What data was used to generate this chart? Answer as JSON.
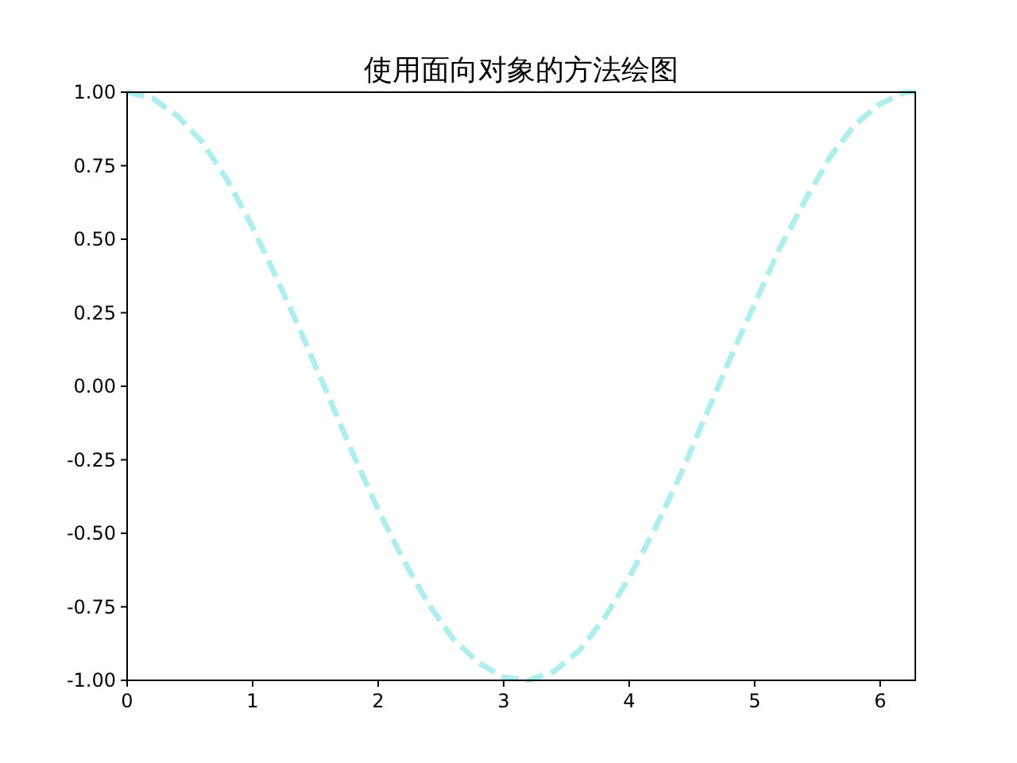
{
  "chart_data": {
    "type": "line",
    "title": "使用面向对象的方法绘图",
    "x": [
      0,
      0.2,
      0.4,
      0.6,
      0.8,
      1.0,
      1.2,
      1.4,
      1.6,
      1.8,
      2.0,
      2.2,
      2.4,
      2.6,
      2.8,
      3.0,
      3.2,
      3.4,
      3.6,
      3.8,
      4.0,
      4.2,
      4.4,
      4.6,
      4.8,
      5.0,
      5.2,
      5.4,
      5.6,
      5.8,
      6.0,
      6.2,
      6.28
    ],
    "values": [
      1.0,
      0.98,
      0.92,
      0.83,
      0.7,
      0.54,
      0.36,
      0.17,
      -0.03,
      -0.23,
      -0.42,
      -0.59,
      -0.74,
      -0.86,
      -0.94,
      -0.99,
      -1.0,
      -0.97,
      -0.9,
      -0.79,
      -0.65,
      -0.49,
      -0.31,
      -0.11,
      0.09,
      0.28,
      0.47,
      0.63,
      0.78,
      0.89,
      0.96,
      1.0,
      1.0
    ],
    "color": "#afeeee",
    "line_style": "dashed",
    "xlim": [
      0,
      6.28
    ],
    "ylim": [
      -1,
      1
    ],
    "xticks": [
      0,
      1,
      2,
      3,
      4,
      5,
      6
    ],
    "yticks": [
      {
        "value": -1,
        "label": "-1.00"
      },
      {
        "value": -0.75,
        "label": "-0.75"
      },
      {
        "value": -0.5,
        "label": "-0.50"
      },
      {
        "value": -0.25,
        "label": "-0.25"
      },
      {
        "value": 0,
        "label": "0.00"
      },
      {
        "value": 0.25,
        "label": "0.25"
      },
      {
        "value": 0.5,
        "label": "0.50"
      },
      {
        "value": 0.75,
        "label": "0.75"
      },
      {
        "value": 1,
        "label": "1.00"
      }
    ]
  }
}
